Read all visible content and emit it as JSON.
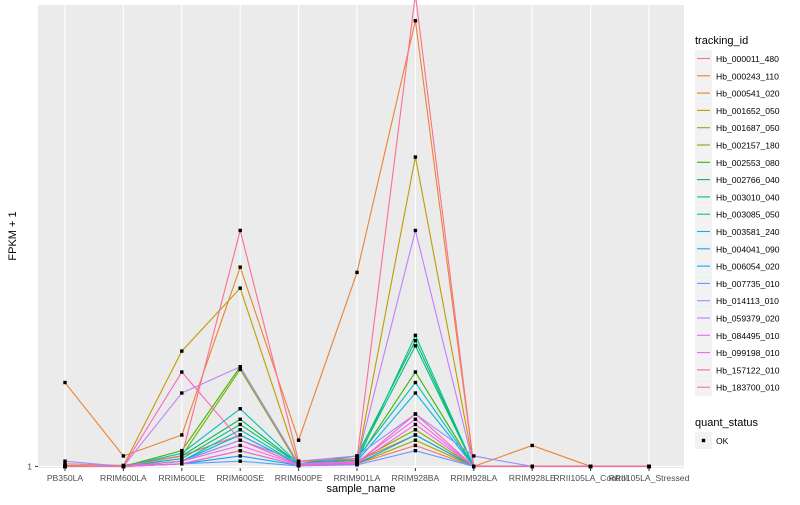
{
  "chart_data": {
    "type": "line",
    "xlabel": "sample_name",
    "ylabel": "FPKM + 1",
    "categories": [
      "PB350LA",
      "RRIM600LA",
      "RRIM600LE",
      "RRIM600SE",
      "RRIM600PE",
      "RRIM901LA",
      "RRIM928BA",
      "RRIM928LA",
      "RRIM928LE",
      "RRII105LA_Control",
      "RRII105LA_Stressed"
    ],
    "y_ticks": [
      {
        "value": 1,
        "label": "1"
      }
    ],
    "y_range": [
      0.97,
      9.8
    ],
    "grid": true,
    "legend": {
      "position": "right",
      "color_title": "tracking_id",
      "shape_title": "quant_status",
      "shape_entries": [
        "OK"
      ]
    },
    "series": [
      {
        "name": "Hb_000011_480",
        "color": "#F8766D",
        "values": [
          1.05,
          1.02,
          1.2,
          1.6,
          1.04,
          1.05,
          1.4,
          1.0,
          1.0,
          1.0,
          1.0
        ]
      },
      {
        "name": "Hb_000243_110",
        "color": "#EA8331",
        "values": [
          2.6,
          1.2,
          1.6,
          4.8,
          1.5,
          4.7,
          9.5,
          1.0,
          1.4,
          1.0,
          1.0
        ]
      },
      {
        "name": "Hb_000541_020",
        "color": "#D89000",
        "values": [
          1.02,
          1.0,
          1.1,
          1.5,
          1.1,
          1.1,
          1.6,
          1.0,
          1.0,
          1.0,
          1.0
        ]
      },
      {
        "name": "Hb_001652_050",
        "color": "#C09B00",
        "values": [
          1.01,
          1.01,
          3.2,
          4.4,
          1.04,
          1.08,
          6.9,
          1.0,
          1.0,
          1.0,
          1.0
        ]
      },
      {
        "name": "Hb_001687_050",
        "color": "#A3A500",
        "values": [
          1.0,
          1.0,
          1.05,
          1.3,
          1.02,
          1.05,
          1.5,
          1.0,
          1.0,
          1.0,
          1.0
        ]
      },
      {
        "name": "Hb_002157_180",
        "color": "#7CAE00",
        "values": [
          1.0,
          1.01,
          1.2,
          2.85,
          1.02,
          1.1,
          1.7,
          1.0,
          1.0,
          1.0,
          1.0
        ]
      },
      {
        "name": "Hb_002553_080",
        "color": "#39B600",
        "values": [
          1.0,
          1.0,
          1.3,
          2.9,
          1.05,
          1.12,
          2.8,
          1.0,
          1.0,
          1.0,
          1.0
        ]
      },
      {
        "name": "Hb_002766_040",
        "color": "#00BB4E",
        "values": [
          1.0,
          1.0,
          1.2,
          1.9,
          1.05,
          1.2,
          3.4,
          1.0,
          1.0,
          1.0,
          1.0
        ]
      },
      {
        "name": "Hb_003010_040",
        "color": "#00BF7D",
        "values": [
          1.0,
          1.0,
          1.15,
          1.8,
          1.05,
          1.15,
          3.3,
          1.0,
          1.0,
          1.0,
          1.0
        ]
      },
      {
        "name": "Hb_003085_050",
        "color": "#00C1A3",
        "values": [
          1.0,
          1.0,
          1.1,
          1.7,
          1.03,
          1.1,
          3.5,
          1.0,
          1.0,
          1.0,
          1.0
        ]
      },
      {
        "name": "Hb_003581_240",
        "color": "#00BFC4",
        "values": [
          1.0,
          1.0,
          1.25,
          2.1,
          1.05,
          1.15,
          2.6,
          1.0,
          1.0,
          1.0,
          1.0
        ]
      },
      {
        "name": "Hb_004041_090",
        "color": "#00B8E7",
        "values": [
          1.0,
          1.0,
          1.1,
          1.6,
          1.04,
          1.1,
          2.4,
          1.0,
          1.0,
          1.0,
          1.0
        ]
      },
      {
        "name": "Hb_006054_020",
        "color": "#00A9FF",
        "values": [
          1.0,
          1.0,
          1.05,
          1.2,
          1.02,
          1.05,
          1.6,
          1.0,
          1.0,
          1.0,
          1.0
        ]
      },
      {
        "name": "Hb_007735_010",
        "color": "#619CFF",
        "values": [
          1.0,
          1.0,
          1.05,
          1.1,
          1.01,
          1.03,
          1.3,
          1.0,
          1.0,
          1.0,
          1.0
        ]
      },
      {
        "name": "Hb_014113_010",
        "color": "#9590FF",
        "values": [
          1.1,
          1.0,
          1.1,
          1.5,
          1.1,
          1.2,
          2.0,
          1.2,
          1.0,
          1.0,
          1.0
        ]
      },
      {
        "name": "Hb_059379_020",
        "color": "#C77CFF",
        "values": [
          1.0,
          1.0,
          2.4,
          2.9,
          1.05,
          1.1,
          5.5,
          1.0,
          1.0,
          1.0,
          1.0
        ]
      },
      {
        "name": "Hb_084495_010",
        "color": "#E76BF3",
        "values": [
          1.0,
          1.0,
          1.1,
          1.4,
          1.03,
          1.08,
          1.9,
          1.0,
          1.0,
          1.0,
          1.0
        ]
      },
      {
        "name": "Hb_099198_010",
        "color": "#FA62DB",
        "values": [
          1.0,
          1.0,
          1.05,
          1.3,
          1.02,
          1.05,
          1.8,
          1.0,
          1.0,
          1.0,
          1.0
        ]
      },
      {
        "name": "Hb_157122_010",
        "color": "#FF62BC",
        "values": [
          1.0,
          1.0,
          2.8,
          1.5,
          1.03,
          1.06,
          2.0,
          1.0,
          1.0,
          1.0,
          1.0
        ]
      },
      {
        "name": "Hb_183700_010",
        "color": "#FF6C90",
        "values": [
          1.0,
          1.0,
          1.2,
          5.5,
          1.1,
          1.15,
          10.0,
          1.0,
          1.0,
          1.0,
          1.0
        ]
      }
    ]
  }
}
